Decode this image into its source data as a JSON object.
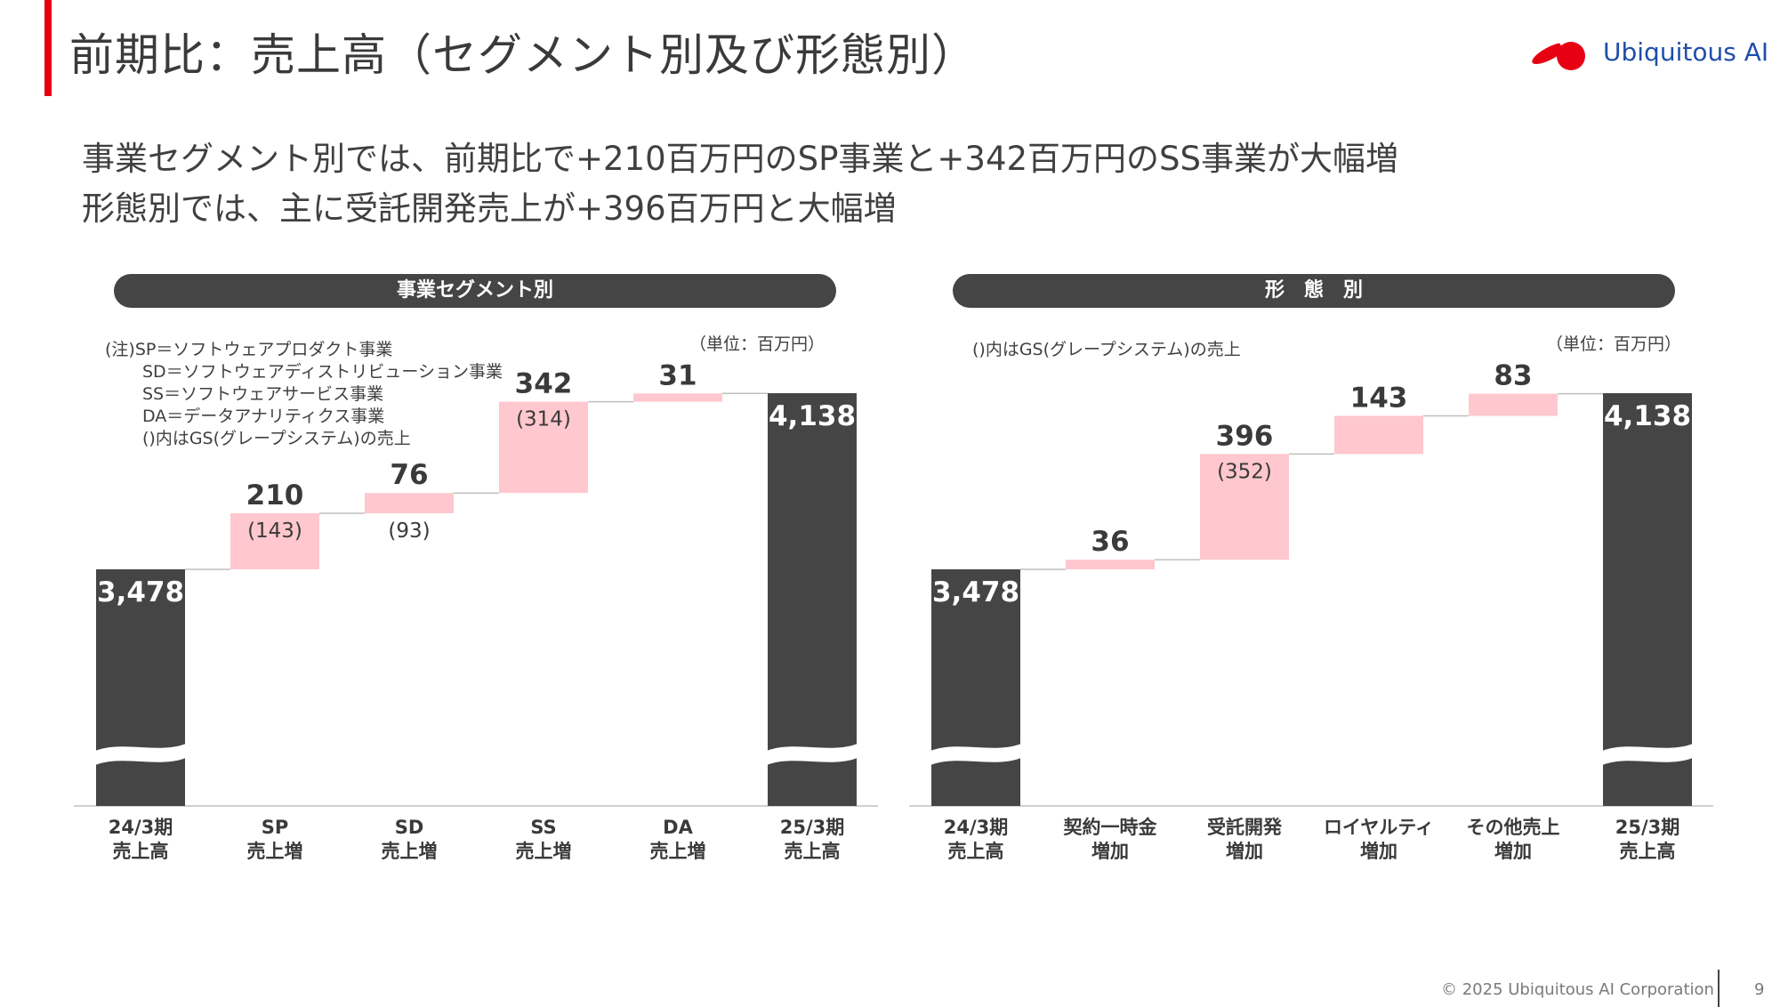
{
  "slide": {
    "title": "前期比：売上高（セグメント別及び形態別）",
    "brand": "Ubiquitous AI",
    "headline1": "事業セグメント別では、前期比で+210百万円のSP事業と+342百万円のSS事業が大幅増",
    "headline2": "形態別では、主に受託開発売上が+396百万円と大幅増",
    "footer": "© 2025 Ubiquitous AI Corporation",
    "page": "9"
  },
  "colors": {
    "accent": "#e60012",
    "dark": "#454545",
    "increase": "#ffc7ce",
    "brand_blue": "#1f4eaa"
  },
  "left_panel": {
    "header": "事業セグメント別",
    "unit": "（単位：百万円）",
    "notes": [
      "(注)SP＝ソフトウェアプロダクト事業",
      "SD＝ソフトウェアディストリビューション事業",
      "SS＝ソフトウェアサービス事業",
      "DA＝データアナリティクス事業",
      "()内はGS(グレープシステム)の売上"
    ],
    "categories": [
      {
        "line1": "24/3期",
        "line2": "売上高"
      },
      {
        "line1": "SP",
        "line2": "売上増"
      },
      {
        "line1": "SD",
        "line2": "売上増"
      },
      {
        "line1": "SS",
        "line2": "売上増"
      },
      {
        "line1": "DA",
        "line2": "売上増"
      },
      {
        "line1": "25/3期",
        "line2": "売上高"
      }
    ]
  },
  "right_panel": {
    "header": "形　態　別",
    "unit": "（単位：百万円）",
    "note": "()内はGS(グレープシステム)の売上",
    "categories": [
      {
        "line1": "24/3期",
        "line2": "売上高"
      },
      {
        "line1": "契約一時金",
        "line2": "増加"
      },
      {
        "line1": "受託開発",
        "line2": "増加"
      },
      {
        "line1": "ロイヤルティ",
        "line2": "増加"
      },
      {
        "line1": "その他売上",
        "line2": "増加"
      },
      {
        "line1": "25/3期",
        "line2": "売上高"
      }
    ]
  },
  "chart_data": [
    {
      "type": "waterfall",
      "title": "事業セグメント別",
      "unit": "百万円",
      "categories": [
        "24/3期 売上高",
        "SP 売上増",
        "SD 売上増",
        "SS 売上増",
        "DA 売上増",
        "25/3期 売上高"
      ],
      "values": [
        3478,
        210,
        76,
        342,
        31,
        4138
      ],
      "value_labels": [
        "3,478",
        "210",
        "76",
        "342",
        "31",
        "4,138"
      ],
      "gs_values": [
        null,
        143,
        93,
        314,
        null,
        null
      ],
      "gs_labels": [
        "",
        "(143)",
        "(93)",
        "(314)",
        "",
        ""
      ],
      "kinds": [
        "total",
        "increase",
        "increase",
        "increase",
        "increase",
        "total"
      ],
      "axis_break": true
    },
    {
      "type": "waterfall",
      "title": "形態別",
      "unit": "百万円",
      "categories": [
        "24/3期 売上高",
        "契約一時金 増加",
        "受託開発 増加",
        "ロイヤルティ 増加",
        "その他売上 増加",
        "25/3期 売上高"
      ],
      "values": [
        3478,
        36,
        396,
        143,
        83,
        4138
      ],
      "value_labels": [
        "3,478",
        "36",
        "396",
        "143",
        "83",
        "4,138"
      ],
      "gs_values": [
        null,
        null,
        352,
        null,
        null,
        null
      ],
      "gs_labels": [
        "",
        "",
        "(352)",
        "",
        "",
        ""
      ],
      "kinds": [
        "total",
        "increase",
        "increase",
        "increase",
        "increase",
        "total"
      ],
      "axis_break": true
    }
  ]
}
